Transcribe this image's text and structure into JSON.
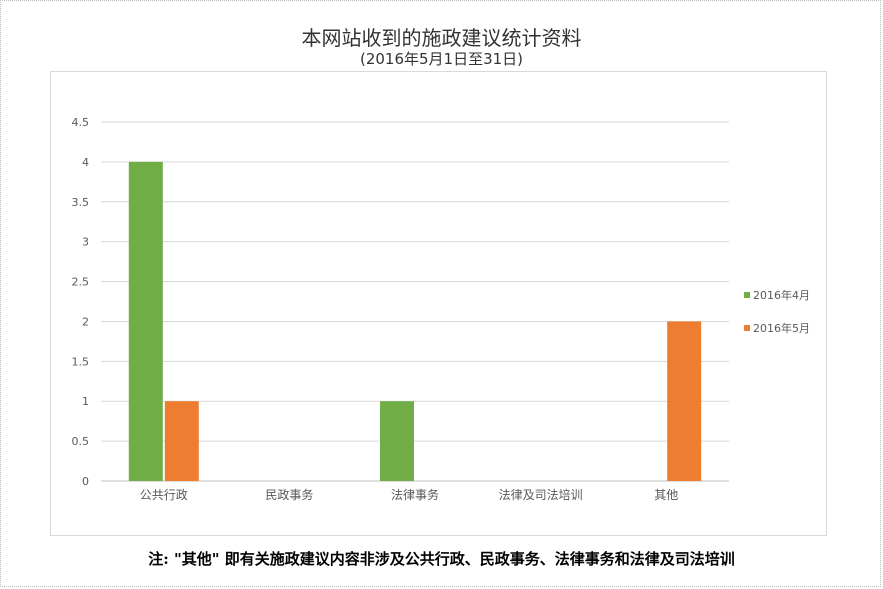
{
  "chart_data": {
    "type": "bar",
    "title": "本网站收到的施政建议统计资料",
    "subtitle": "(2016年5月1日至31日)",
    "categories": [
      "公共行政",
      "民政事务",
      "法律事务",
      "法律及司法培训",
      "其他"
    ],
    "series": [
      {
        "name": "2016年4月",
        "color": "#70ad47",
        "values": [
          4,
          0,
          1,
          0,
          0
        ]
      },
      {
        "name": "2016年5月",
        "color": "#ed7d31",
        "values": [
          1,
          0,
          0,
          0,
          2
        ]
      }
    ],
    "yticks": [
      "0",
      "0.5",
      "1",
      "1.5",
      "2",
      "2.5",
      "3",
      "3.5",
      "4",
      "4.5"
    ],
    "ylim": [
      0,
      4.5
    ],
    "grid": true,
    "legend_position": "right"
  },
  "footnote": "注: \"其他\" 即有关施政建议内容非涉及公共行政、民政事务、法律事务和法律及司法培训"
}
